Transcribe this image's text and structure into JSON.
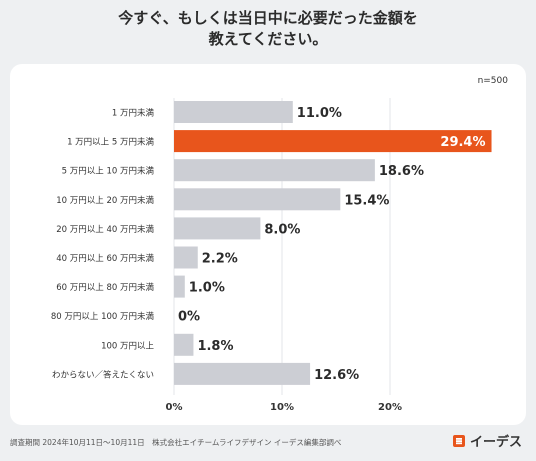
{
  "title": {
    "line1": "今すぐ、もしくは当日中に必要だった金額を",
    "line2": "教えてください。"
  },
  "sample_size": "n=500",
  "footer_note": "調査期間 2024年10月11日〜10月11日　株式会社エイチームライフデザイン イーデス編集部調べ",
  "brand": {
    "name": "イーデス",
    "logo": "edes-logo-icon"
  },
  "colors": {
    "highlight": "#e8551c",
    "bar": "#ccced4",
    "grid": "#e3e5e8"
  },
  "chart_data": {
    "type": "bar",
    "orientation": "horizontal",
    "categories": [
      "1 万円未満",
      "1 万円以上 5 万円未満",
      "5 万円以上 10 万円未満",
      "10 万円以上 20 万円未満",
      "20 万円以上 40 万円未満",
      "40 万円以上 60 万円未満",
      "60 万円以上 80 万円未満",
      "80 万円以上 100 万円未満",
      "100 万円以上",
      "わからない／答えたくない"
    ],
    "values": [
      11.0,
      29.4,
      18.6,
      15.4,
      8.0,
      2.2,
      1.0,
      0,
      1.8,
      12.6
    ],
    "value_labels": [
      "11.0%",
      "29.4%",
      "18.6%",
      "15.4%",
      "8.0%",
      "2.2%",
      "1.0%",
      "0%",
      "1.8%",
      "12.6%"
    ],
    "highlight_index": 1,
    "xlim": [
      0,
      30
    ],
    "xticks": [
      0,
      10,
      20
    ],
    "xtick_labels": [
      "0%",
      "10%",
      "20%"
    ],
    "grid": true
  }
}
